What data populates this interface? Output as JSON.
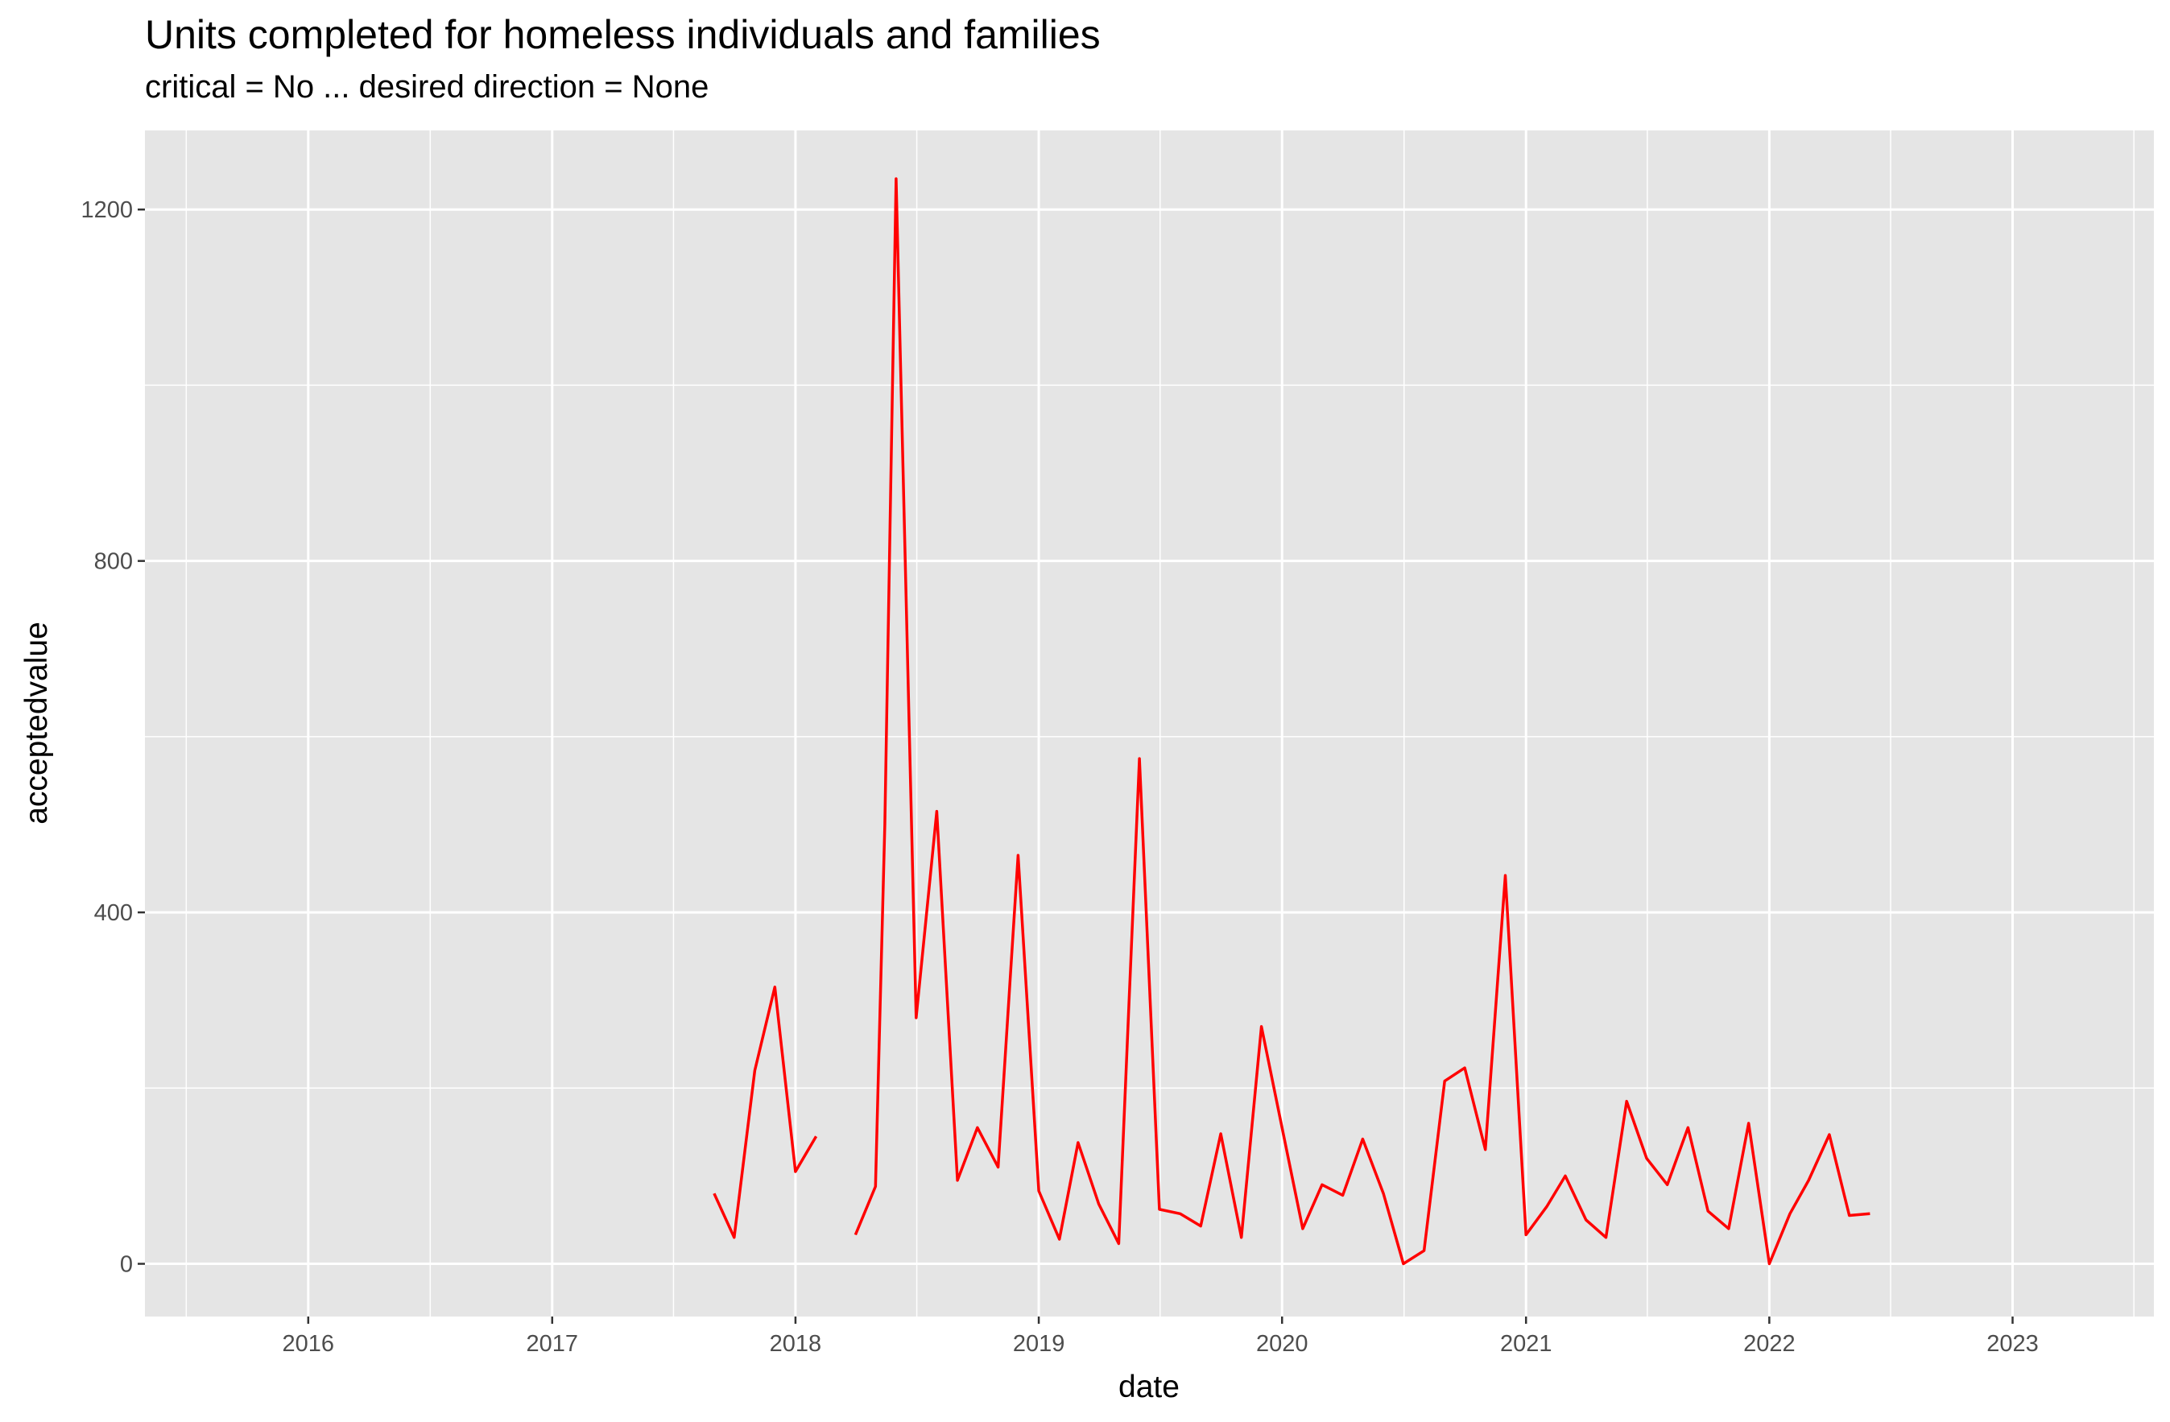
{
  "colors": {
    "panel": "#e5e5e5",
    "grid_major": "#ffffff",
    "line": "#ff0000"
  },
  "chart_data": {
    "type": "line",
    "title": "Units completed for homeless individuals and families",
    "subtitle": "critical = No ... desired direction = None",
    "xlabel": "date",
    "ylabel": "acceptedvalue",
    "xlim": [
      "2015-05-01",
      "2023-08-01"
    ],
    "ylim": [
      -60,
      1290
    ],
    "x_ticks": [
      "2016",
      "2017",
      "2018",
      "2019",
      "2020",
      "2021",
      "2022",
      "2023"
    ],
    "y_ticks": [
      0,
      400,
      800,
      1200
    ],
    "grid": true,
    "legend": "none",
    "series": [
      {
        "segments": [
          {
            "x": [
              "2017-09-01",
              "2017-10-01",
              "2017-11-01",
              "2017-12-01",
              "2018-01-01",
              "2018-02-01"
            ],
            "y": [
              80,
              30,
              220,
              315,
              105,
              145
            ]
          },
          {
            "x": [
              "2018-04-01",
              "2018-05-01",
              "2018-05-15",
              "2018-06-01",
              "2018-07-01",
              "2018-08-01",
              "2018-09-01",
              "2018-10-01",
              "2018-11-01",
              "2018-12-01",
              "2019-01-01",
              "2019-02-01",
              "2019-03-01",
              "2019-04-01",
              "2019-05-01",
              "2019-06-01",
              "2019-07-01",
              "2019-08-01",
              "2019-09-01",
              "2019-10-01",
              "2019-11-01",
              "2019-12-01",
              "2020-01-01",
              "2020-02-01",
              "2020-03-01",
              "2020-04-01",
              "2020-05-01",
              "2020-06-01",
              "2020-07-01",
              "2020-08-01",
              "2020-09-01",
              "2020-10-01",
              "2020-11-01",
              "2020-12-01",
              "2021-01-01",
              "2021-02-01",
              "2021-03-01",
              "2021-04-01",
              "2021-05-01",
              "2021-06-01",
              "2021-07-01",
              "2021-08-01",
              "2021-09-01",
              "2021-10-01",
              "2021-11-01",
              "2021-12-01",
              "2022-01-01",
              "2022-02-01",
              "2022-03-01",
              "2022-04-01",
              "2022-05-01",
              "2022-06-01"
            ],
            "y": [
              33,
              88,
              500,
              1235,
              280,
              515,
              95,
              155,
              110,
              465,
              83,
              28,
              138,
              68,
              23,
              575,
              62,
              57,
              43,
              148,
              30,
              270,
              155,
              40,
              90,
              78,
              142,
              80,
              0,
              15,
              208,
              223,
              130,
              442,
              33,
              65,
              100,
              50,
              30,
              185,
              120,
              90,
              155,
              60,
              40,
              160,
              0,
              57,
              95,
              147,
              55,
              57
            ]
          }
        ]
      }
    ]
  }
}
